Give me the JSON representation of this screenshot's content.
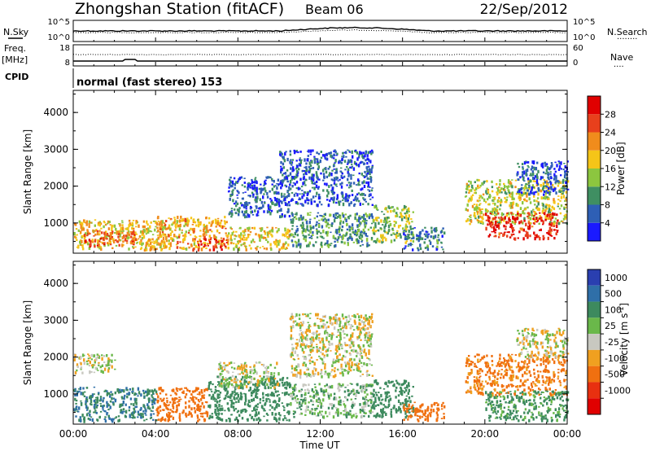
{
  "header": {
    "station": "Zhongshan Station (fitACF)",
    "beam": "Beam 06",
    "date": "22/Sep/2012"
  },
  "noise_panel": {
    "left_label": "N.Sky",
    "right_label": "N.Search",
    "left_ticks": [
      "10^5",
      "10^0"
    ],
    "right_ticks": [
      "10^5",
      "10^0"
    ],
    "right_legend_line": "........"
  },
  "freq_panel": {
    "left_label_1": "Freq.",
    "left_label_2": "[MHz]",
    "right_label": "Nave",
    "left_ticks": [
      "18",
      "8"
    ],
    "right_ticks": [
      "60",
      "0"
    ],
    "right_legend_line": "...."
  },
  "cpid_panel": {
    "label": "CPID",
    "text": "normal (fast stereo) 153"
  },
  "time_axis": {
    "label": "Time UT",
    "ticks": [
      "00:00",
      "04:00",
      "08:00",
      "12:00",
      "16:00",
      "20:00",
      "00:00"
    ]
  },
  "range_axis": {
    "label": "Slant Range [km]",
    "ticks": [
      "1000",
      "2000",
      "3000",
      "4000"
    ]
  },
  "power_scale": {
    "label": "Power [dB]",
    "ticks": [
      "4",
      "8",
      "12",
      "16",
      "20",
      "24",
      "28"
    ],
    "colors": [
      "#1a1aff",
      "#2e5fb5",
      "#3f8f62",
      "#8cc63f",
      "#f5c518",
      "#f08c1c",
      "#e8401c",
      "#e00000"
    ]
  },
  "velocity_scale": {
    "label": "Velocity [m s",
    "label_sup": "-1",
    "label_end": "]",
    "ticks": [
      "1000",
      "500",
      "100",
      "25",
      "-25",
      "-100",
      "-500",
      "-1000"
    ],
    "colors": [
      "#2a3fb0",
      "#2f6fa8",
      "#3d8a5e",
      "#6ab84a",
      "#c8c8c0",
      "#f0a020",
      "#f07010",
      "#e83010",
      "#e00000"
    ]
  },
  "chart_data": {
    "type": "heatmap",
    "title": "Zhongshan Station (fitACF)",
    "xlabel": "Time UT",
    "ylabel": "Slant Range [km]",
    "xlim_hours": [
      0,
      24
    ],
    "ylim_km": [
      180,
      4600
    ],
    "power_blobs": [
      {
        "t": [
          0.0,
          4.5
        ],
        "r": [
          300,
          1100
        ],
        "v": 18
      },
      {
        "t": [
          0.5,
          3.0
        ],
        "r": [
          400,
          800
        ],
        "v": 25
      },
      {
        "t": [
          4.0,
          7.5
        ],
        "r": [
          300,
          1200
        ],
        "v": 20
      },
      {
        "t": [
          6.0,
          7.5
        ],
        "r": [
          300,
          600
        ],
        "v": 28
      },
      {
        "t": [
          7.5,
          10.5
        ],
        "r": [
          300,
          900
        ],
        "v": 18
      },
      {
        "t": [
          7.5,
          10.5
        ],
        "r": [
          1200,
          2300
        ],
        "v": 6
      },
      {
        "t": [
          10.0,
          14.5
        ],
        "r": [
          1500,
          3000
        ],
        "v": 6
      },
      {
        "t": [
          10.5,
          14.5
        ],
        "r": [
          400,
          1300
        ],
        "v": 10
      },
      {
        "t": [
          14.5,
          16.5
        ],
        "r": [
          500,
          1500
        ],
        "v": 14
      },
      {
        "t": [
          16.0,
          18.0
        ],
        "r": [
          300,
          900
        ],
        "v": 8
      },
      {
        "t": [
          19.0,
          24.0
        ],
        "r": [
          1000,
          2200
        ],
        "v": 16
      },
      {
        "t": [
          20.0,
          23.5
        ],
        "r": [
          600,
          1300
        ],
        "v": 28
      },
      {
        "t": [
          21.5,
          24.0
        ],
        "r": [
          1800,
          2700
        ],
        "v": 6
      }
    ],
    "velocity_blobs": [
      {
        "t": [
          0.0,
          4.0
        ],
        "r": [
          300,
          1200
        ],
        "v": 500
      },
      {
        "t": [
          0.0,
          2.0
        ],
        "r": [
          1600,
          2100
        ],
        "v": 0
      },
      {
        "t": [
          4.0,
          6.5
        ],
        "r": [
          300,
          1200
        ],
        "v": -300
      },
      {
        "t": [
          6.5,
          10.5
        ],
        "r": [
          300,
          1500
        ],
        "v": 200
      },
      {
        "t": [
          7.0,
          10.0
        ],
        "r": [
          1200,
          1900
        ],
        "v": 0
      },
      {
        "t": [
          10.5,
          14.5
        ],
        "r": [
          400,
          1300
        ],
        "v": 80
      },
      {
        "t": [
          10.5,
          14.5
        ],
        "r": [
          1500,
          3200
        ],
        "v": 0
      },
      {
        "t": [
          14.5,
          16.5
        ],
        "r": [
          400,
          1400
        ],
        "v": 200
      },
      {
        "t": [
          16.0,
          18.0
        ],
        "r": [
          300,
          800
        ],
        "v": -200
      },
      {
        "t": [
          19.0,
          24.0
        ],
        "r": [
          1000,
          2100
        ],
        "v": -150
      },
      {
        "t": [
          20.0,
          24.0
        ],
        "r": [
          300,
          1100
        ],
        "v": 150
      },
      {
        "t": [
          21.5,
          24.0
        ],
        "r": [
          2000,
          2800
        ],
        "v": 0
      }
    ]
  }
}
